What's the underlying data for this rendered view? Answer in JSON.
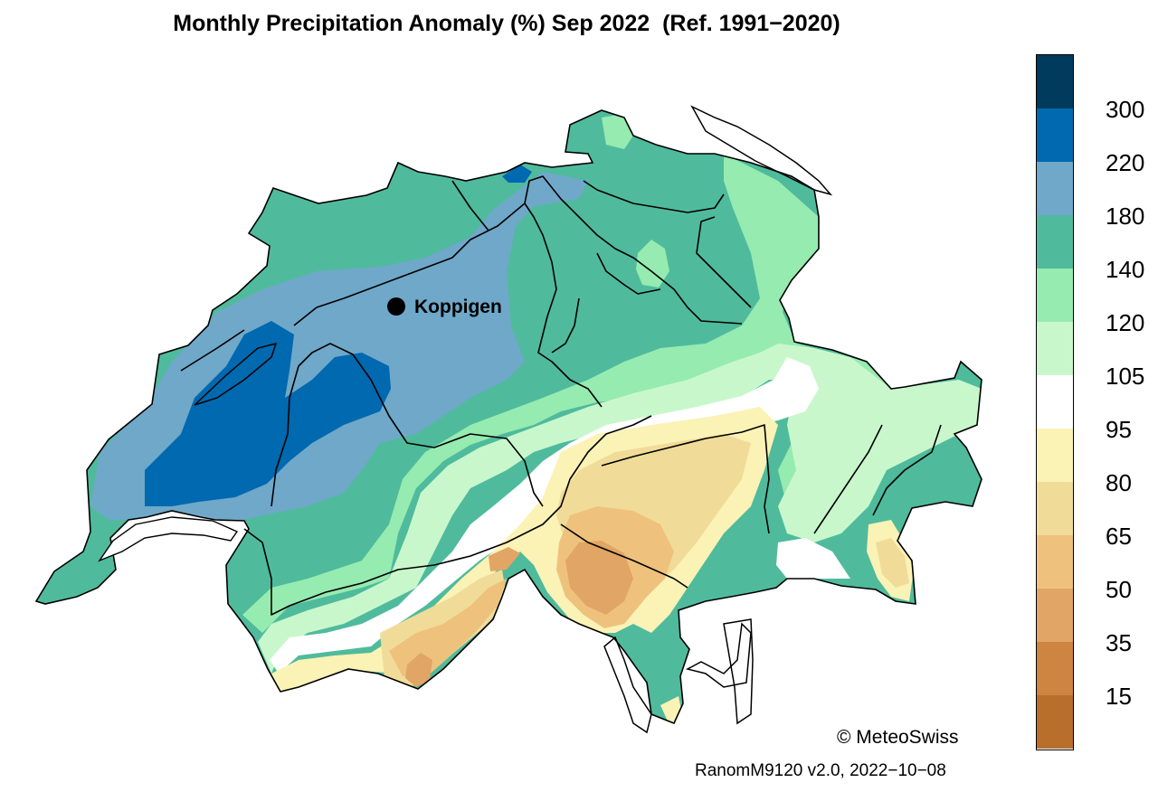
{
  "title": "Monthly Precipitation Anomaly (%) Sep 2022  (Ref. 1991−2020)",
  "station": {
    "name": "Koppigen"
  },
  "copyright": "© MeteoSwiss",
  "version": "RanomM9120 v2.0, 2022−10−08",
  "colors": {
    "c_above300": "#003a5c",
    "c_220_300": "#0069b0",
    "c_180_220": "#6fa8c9",
    "c_140_180": "#4fbb9c",
    "c_120_140": "#96ebb0",
    "c_105_120": "#c9f7cc",
    "c_95_105": "#ffffff",
    "c_80_95": "#fbf2b6",
    "c_65_80": "#f0dc98",
    "c_50_65": "#eec27c",
    "c_35_50": "#e1a565",
    "c_15_35": "#cd8541",
    "c_below15": "#b96f2c"
  },
  "legend": {
    "labels": [
      "300",
      "220",
      "180",
      "140",
      "120",
      "105",
      "95",
      "80",
      "65",
      "50",
      "35",
      "15"
    ]
  }
}
